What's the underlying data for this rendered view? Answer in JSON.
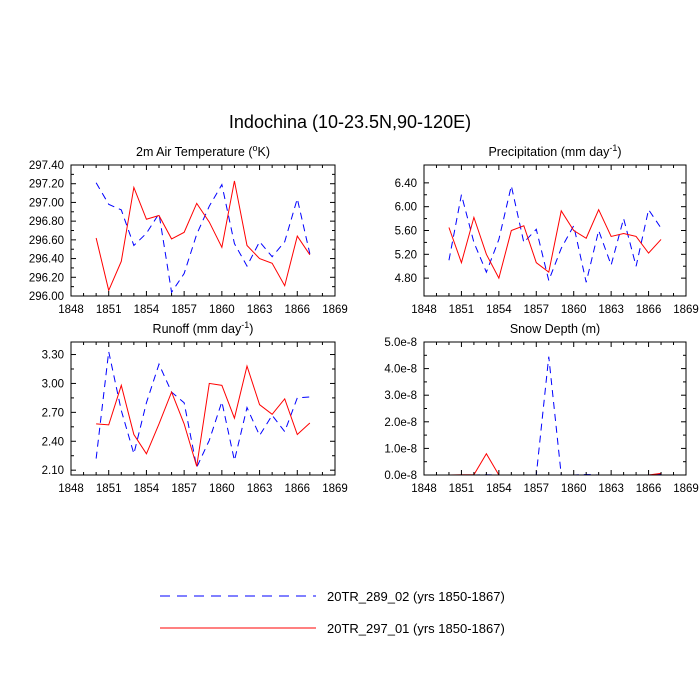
{
  "title": "Indochina (10-23.5N,90-120E)",
  "legend": [
    {
      "label": "20TR_289_02 (yrs 1850-1867)",
      "color": "#0000ff",
      "style": "dashed"
    },
    {
      "label": "20TR_297_01 (yrs 1850-1867)",
      "color": "#ff0000",
      "style": "solid"
    }
  ],
  "chart_data": [
    {
      "type": "line",
      "title": "2m Air Temperature (°K)",
      "title_parts": [
        "2m Air Temperature (",
        "o",
        "K)"
      ],
      "xlim": [
        1848,
        1869
      ],
      "xticks": [
        1848,
        1851,
        1854,
        1857,
        1860,
        1863,
        1866,
        1869
      ],
      "ylim": [
        296.0,
        297.4
      ],
      "yticks": [
        296.0,
        296.2,
        296.4,
        296.6,
        296.8,
        297.0,
        297.2,
        297.4
      ],
      "ytick_labels": [
        "296.00",
        "296.20",
        "296.40",
        "296.60",
        "296.80",
        "297.00",
        "297.20",
        "297.40"
      ],
      "x": [
        1850,
        1851,
        1852,
        1853,
        1854,
        1855,
        1856,
        1857,
        1858,
        1859,
        1860,
        1861,
        1862,
        1863,
        1864,
        1865,
        1866,
        1867
      ],
      "series": [
        {
          "name": "20TR_289_02",
          "values": [
            297.21,
            296.98,
            296.92,
            296.54,
            296.67,
            296.88,
            296.04,
            296.24,
            296.66,
            296.96,
            297.19,
            296.56,
            296.32,
            296.58,
            296.42,
            296.58,
            297.04,
            296.45
          ]
        },
        {
          "name": "20TR_297_01",
          "values": [
            296.62,
            296.06,
            296.37,
            297.16,
            296.82,
            296.86,
            296.61,
            296.68,
            296.99,
            296.79,
            296.52,
            297.23,
            296.54,
            296.4,
            296.35,
            296.11,
            296.64,
            296.44
          ]
        }
      ]
    },
    {
      "type": "line",
      "title": "Precipitation (mm day⁻¹)",
      "title_parts": [
        "Precipitation (mm day",
        "-1",
        ")"
      ],
      "xlim": [
        1848,
        1869
      ],
      "xticks": [
        1848,
        1851,
        1854,
        1857,
        1860,
        1863,
        1866,
        1869
      ],
      "ylim": [
        4.5,
        6.7
      ],
      "yticks": [
        4.8,
        5.2,
        5.6,
        6.0,
        6.4
      ],
      "ytick_labels": [
        "4.80",
        "5.20",
        "5.60",
        "6.00",
        "6.40"
      ],
      "x": [
        1850,
        1851,
        1852,
        1853,
        1854,
        1855,
        1856,
        1857,
        1858,
        1859,
        1860,
        1861,
        1862,
        1863,
        1864,
        1865,
        1866,
        1867
      ],
      "series": [
        {
          "name": "20TR_289_02",
          "values": [
            5.1,
            6.2,
            5.4,
            4.9,
            5.45,
            6.35,
            5.4,
            5.62,
            4.76,
            5.3,
            5.68,
            4.73,
            5.6,
            5.02,
            5.8,
            5.0,
            5.95,
            5.64
          ]
        },
        {
          "name": "20TR_297_01",
          "values": [
            5.65,
            5.06,
            5.82,
            5.2,
            4.8,
            5.6,
            5.68,
            5.06,
            4.9,
            5.93,
            5.6,
            5.47,
            5.95,
            5.5,
            5.55,
            5.5,
            5.22,
            5.45
          ]
        }
      ]
    },
    {
      "type": "line",
      "title": "Runoff (mm day⁻¹)",
      "title_parts": [
        "Runoff (mm day",
        "-1",
        ")"
      ],
      "xlim": [
        1848,
        1869
      ],
      "xticks": [
        1848,
        1851,
        1854,
        1857,
        1860,
        1863,
        1866,
        1869
      ],
      "ylim": [
        2.05,
        3.43
      ],
      "yticks": [
        2.1,
        2.4,
        2.7,
        3.0,
        3.3
      ],
      "ytick_labels": [
        "2.10",
        "2.40",
        "2.70",
        "3.00",
        "3.30"
      ],
      "x": [
        1850,
        1851,
        1852,
        1853,
        1854,
        1855,
        1856,
        1857,
        1858,
        1859,
        1860,
        1861,
        1862,
        1863,
        1864,
        1865,
        1866,
        1867
      ],
      "series": [
        {
          "name": "20TR_289_02",
          "values": [
            2.22,
            3.33,
            2.72,
            2.27,
            2.8,
            3.2,
            2.91,
            2.8,
            2.13,
            2.41,
            2.81,
            2.2,
            2.75,
            2.46,
            2.67,
            2.5,
            2.85,
            2.86
          ]
        },
        {
          "name": "20TR_297_01",
          "values": [
            2.58,
            2.57,
            2.98,
            2.47,
            2.27,
            2.58,
            2.91,
            2.58,
            2.14,
            3.0,
            2.98,
            2.64,
            3.18,
            2.78,
            2.68,
            2.84,
            2.47,
            2.59
          ]
        }
      ]
    },
    {
      "type": "line",
      "title": "Snow Depth (m)",
      "title_parts": [
        "Snow Depth (m)",
        "",
        ""
      ],
      "xlim": [
        1848,
        1869
      ],
      "xticks": [
        1848,
        1851,
        1854,
        1857,
        1860,
        1863,
        1866,
        1869
      ],
      "ylim": [
        0.0,
        5e-08
      ],
      "yticks": [
        0.0,
        1e-08,
        2e-08,
        3e-08,
        4e-08,
        5e-08
      ],
      "ytick_labels": [
        "0.0e-8",
        "1.0e-8",
        "2.0e-8",
        "3.0e-8",
        "4.0e-8",
        "5.0e-8"
      ],
      "x": [
        1850,
        1851,
        1852,
        1853,
        1854,
        1855,
        1856,
        1857,
        1858,
        1859,
        1860,
        1861,
        1862,
        1863,
        1864,
        1865,
        1866,
        1867
      ],
      "series": [
        {
          "name": "20TR_289_02",
          "values": [
            0,
            0,
            0,
            1e-10,
            0,
            0,
            0,
            0,
            4.45e-08,
            0,
            0,
            2e-10,
            0,
            0,
            0,
            0,
            0,
            3e-10
          ]
        },
        {
          "name": "20TR_297_01",
          "values": [
            0,
            1e-10,
            1e-10,
            8e-09,
            0,
            0,
            0,
            0,
            0,
            0,
            0,
            0,
            0,
            0,
            0,
            0,
            0,
            6e-10
          ]
        }
      ]
    }
  ]
}
